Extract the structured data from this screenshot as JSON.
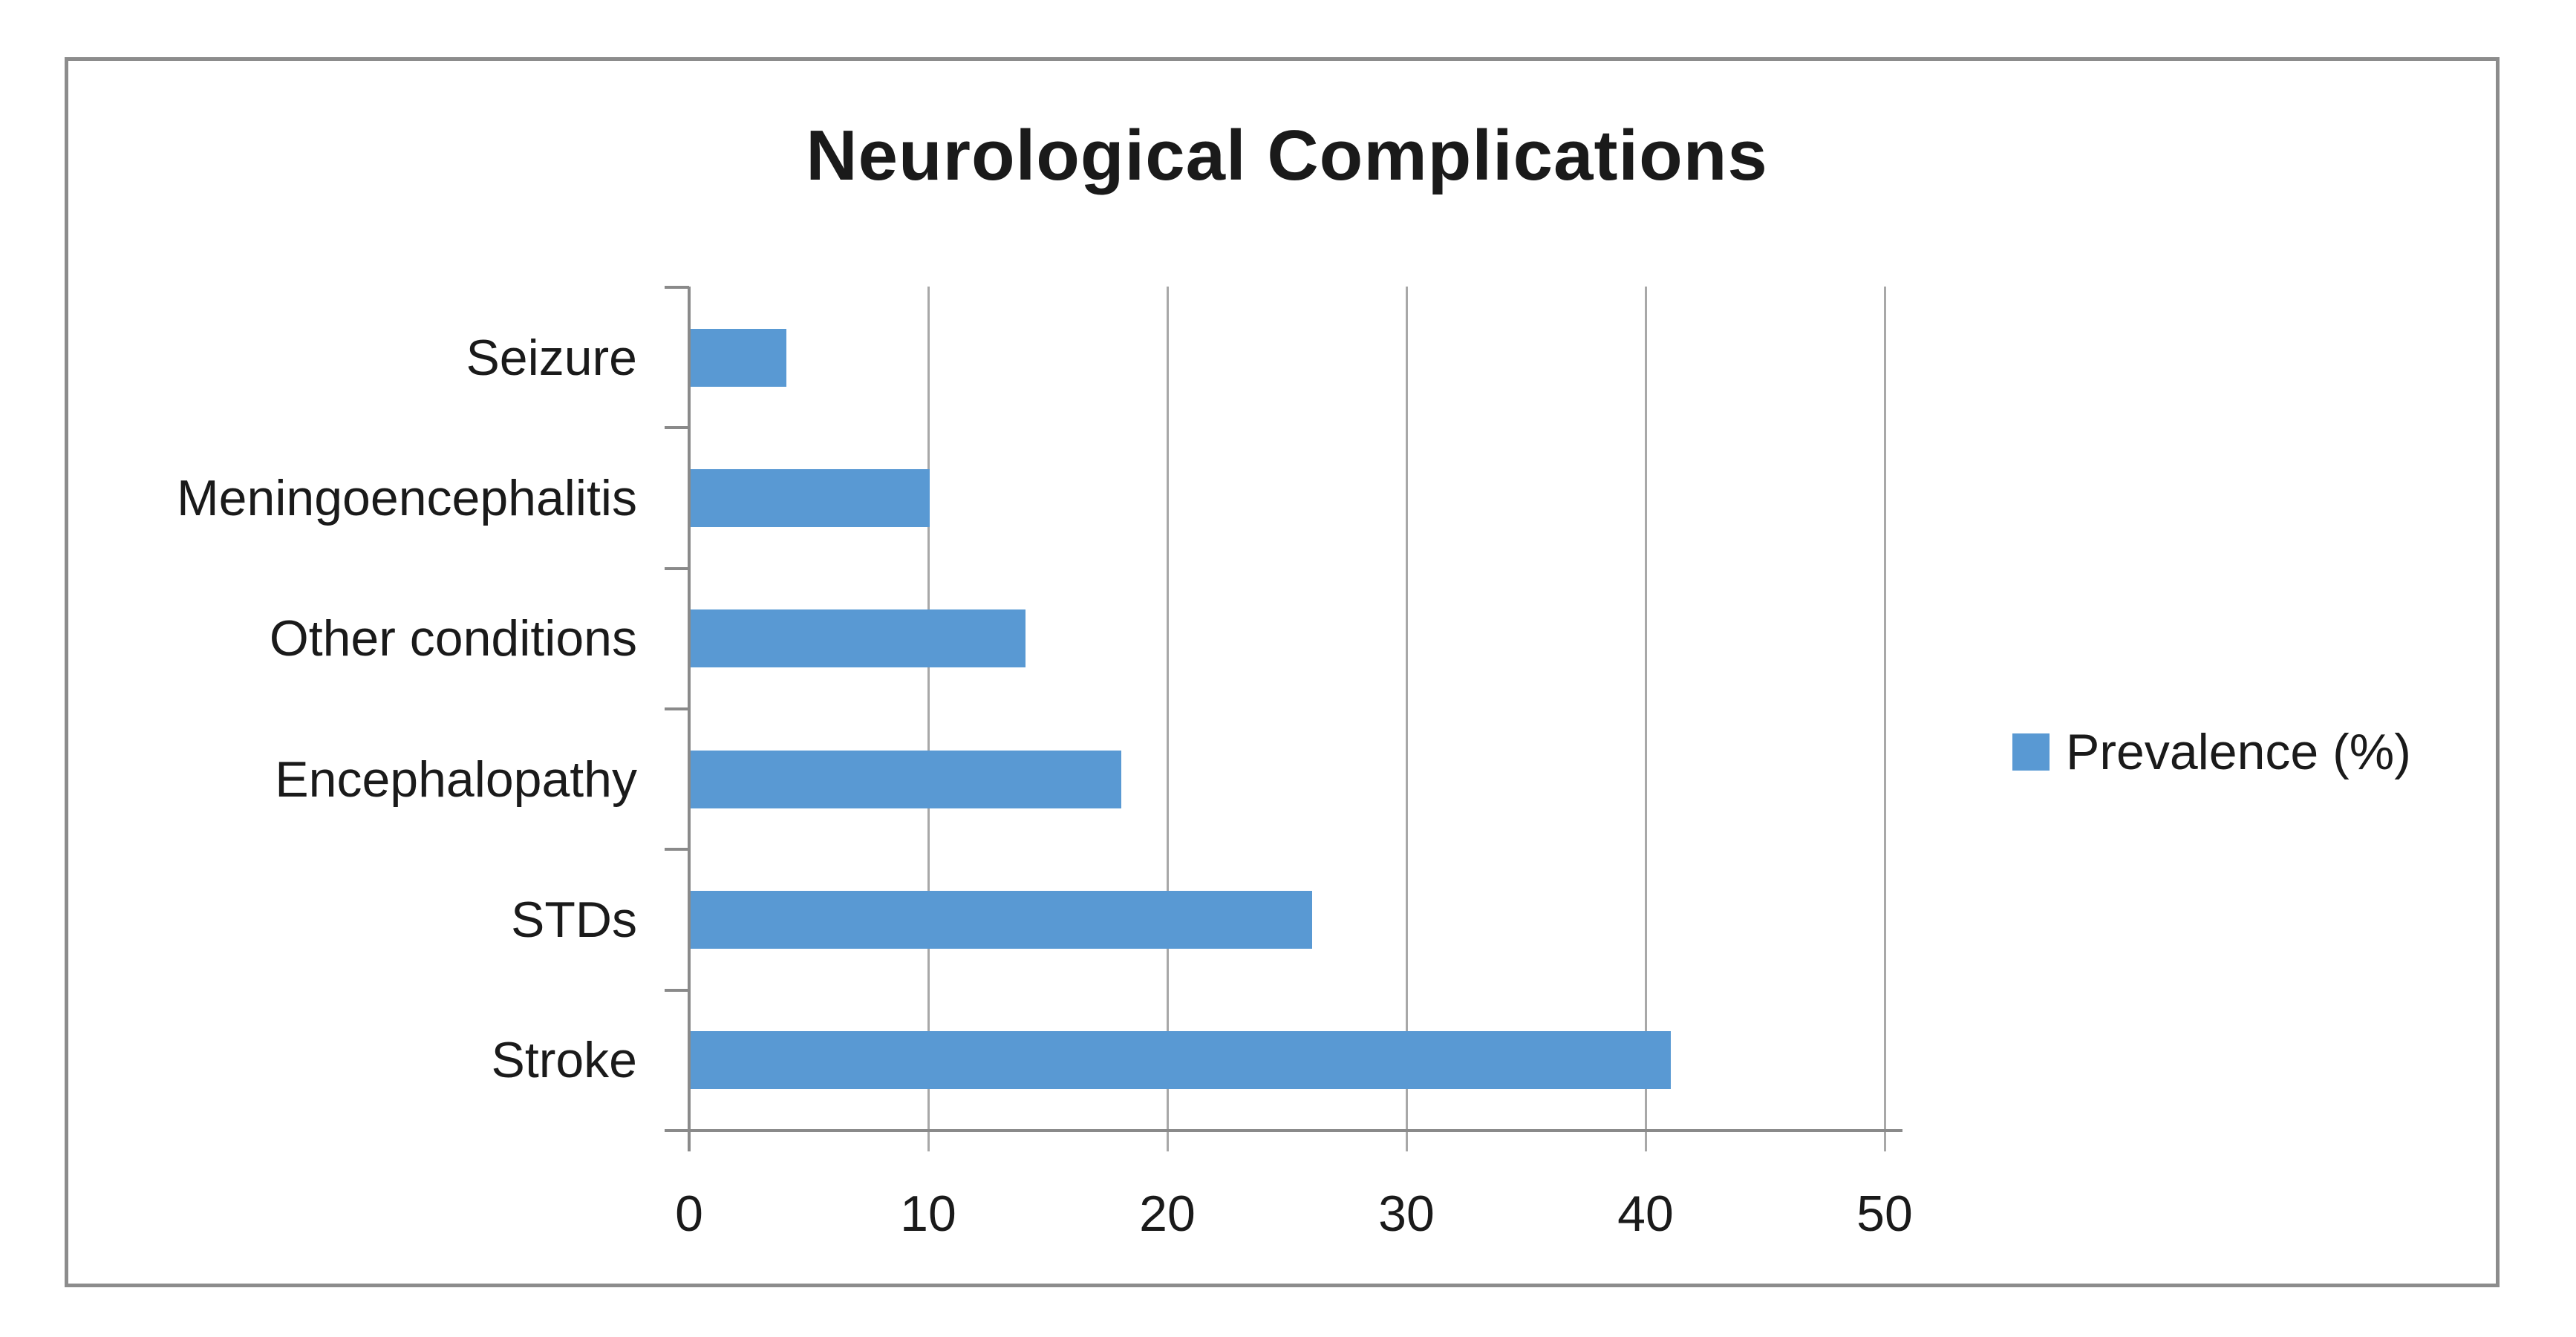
{
  "title": "Neurological Complications",
  "legend": {
    "label": "Prevalence (%)"
  },
  "colors": {
    "bar": "#5999d3",
    "axis": "#8a8a8a",
    "gridline": "#a8a8a8",
    "border": "#8c8c8c",
    "text": "#1a1a1a"
  },
  "chart_data": {
    "type": "bar",
    "orientation": "horizontal",
    "title": "Neurological Complications",
    "categories": [
      "Seizure",
      "Meningoencephalitis",
      "Other conditions",
      "Encephalopathy",
      "STDs",
      "Stroke"
    ],
    "series": [
      {
        "name": "Prevalence (%)",
        "values": [
          4,
          10,
          14,
          18,
          26,
          41
        ]
      }
    ],
    "xlabel": "",
    "ylabel": "",
    "xlim": [
      0,
      50
    ],
    "x_ticks": [
      0,
      10,
      20,
      30,
      40,
      50
    ],
    "grid": true,
    "legend_position": "right"
  }
}
